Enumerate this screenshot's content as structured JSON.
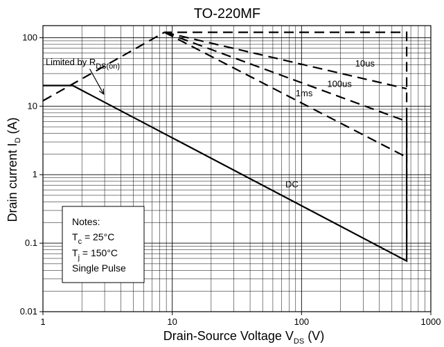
{
  "chart_data": {
    "type": "line",
    "title": "TO-220MF",
    "xlabel": {
      "main": "Drain-Source Voltage V",
      "sub": "DS",
      "unit": " (V)"
    },
    "ylabel": {
      "main": "Drain current I",
      "sub": "D",
      "unit": " (A)"
    },
    "x_scale": "log",
    "y_scale": "log",
    "xlim": [
      1,
      1000
    ],
    "ylim": [
      0.01,
      150
    ],
    "grid": true,
    "x_ticks": [
      {
        "value": 1,
        "label": "1"
      },
      {
        "value": 10,
        "label": "10"
      },
      {
        "value": 100,
        "label": "100"
      },
      {
        "value": 1000,
        "label": "1000"
      }
    ],
    "y_ticks": [
      {
        "value": 0.01,
        "label": "0.01"
      },
      {
        "value": 0.1,
        "label": "0.1"
      },
      {
        "value": 1,
        "label": "1"
      },
      {
        "value": 10,
        "label": "10"
      },
      {
        "value": 100,
        "label": "100"
      }
    ],
    "series": [
      {
        "name": "DC",
        "style": "solid",
        "points": [
          [
            1,
            20
          ],
          [
            1.7,
            20
          ],
          [
            650,
            0.055
          ],
          [
            650,
            7.5
          ]
        ]
      },
      {
        "name": "1ms",
        "style": "dashed",
        "points": [
          [
            8.7,
            120
          ],
          [
            650,
            1.8
          ]
        ]
      },
      {
        "name": "100us",
        "style": "dashed",
        "points": [
          [
            8.7,
            120
          ],
          [
            650,
            6
          ]
        ]
      },
      {
        "name": "10us",
        "style": "dashed",
        "points": [
          [
            8.7,
            120
          ],
          [
            650,
            18
          ]
        ]
      },
      {
        "name": "",
        "style": "dashed",
        "points": [
          [
            1,
            12
          ],
          [
            8.7,
            120
          ],
          [
            650,
            120
          ],
          [
            650,
            0.055
          ]
        ]
      }
    ],
    "annotations": [
      {
        "text": "Limited by R",
        "sub": "DS(on)",
        "x": 1.05,
        "y": 40
      },
      {
        "text": "10us",
        "x": 260,
        "y": 38
      },
      {
        "text": "100us",
        "x": 158,
        "y": 19
      },
      {
        "text": "1ms",
        "x": 90,
        "y": 14
      },
      {
        "text": "DC",
        "x": 75,
        "y": 0.65
      }
    ],
    "notes": {
      "heading": "Notes:",
      "line1": "T",
      "line1_sub": "c",
      "line1_rest": " = 25°C",
      "line2": "T",
      "line2_sub": "j",
      "line2_rest": " = 150°C",
      "line3": "Single Pulse"
    }
  }
}
